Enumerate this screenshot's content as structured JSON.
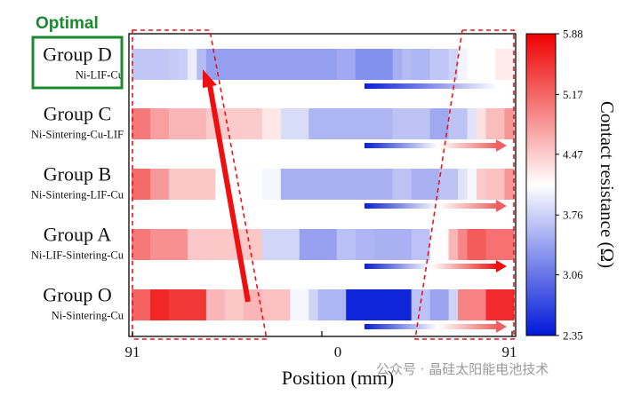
{
  "optimal_label": "Optimal",
  "watermark": "公众号 · 晶硅太阳能电池技术",
  "chart_data": {
    "type": "heatmap",
    "xlabel": "Position (mm)",
    "x_ticks": [
      "91",
      "0",
      "91"
    ],
    "colorbar": {
      "title": "Contact resistance (Ω)",
      "min": 2.35,
      "max": 5.88,
      "ticks": [
        "5.88",
        "5.17",
        "4.47",
        "3.76",
        "3.06",
        "2.35"
      ],
      "low_color": "#0018d8",
      "mid_color": "#ffffff",
      "high_color": "#ee0000"
    },
    "groups": [
      {
        "name": "Group D",
        "desc": "Ni-LIF-Cu",
        "optimal": true,
        "values": [
          3.68,
          3.68,
          3.68,
          3.68,
          3.72,
          3.75,
          3.98,
          3.6,
          3.38,
          3.38,
          3.38,
          3.38,
          3.38,
          3.38,
          3.38,
          3.38,
          3.38,
          3.38,
          3.38,
          3.38,
          3.38,
          3.38,
          3.46,
          3.46,
          3.26,
          3.26,
          3.26,
          3.26,
          3.5,
          3.6,
          3.55,
          3.55,
          3.68,
          3.68,
          3.78,
          4.03,
          4.12,
          4.12,
          4.12,
          4.25,
          4.25
        ]
      },
      {
        "name": "Group C",
        "desc": "Ni-Sintering-Cu-LIF",
        "optimal": false,
        "values": [
          5.05,
          5.05,
          4.78,
          4.78,
          4.62,
          4.62,
          4.62,
          4.62,
          4.48,
          4.48,
          4.48,
          4.48,
          4.48,
          4.48,
          4.28,
          4.28,
          3.85,
          3.85,
          3.85,
          3.55,
          3.55,
          3.55,
          3.55,
          3.55,
          3.55,
          3.55,
          3.55,
          3.55,
          3.66,
          3.66,
          3.66,
          3.66,
          3.45,
          3.45,
          3.66,
          3.66,
          3.9,
          4.32,
          4.58,
          4.58,
          4.85
        ]
      },
      {
        "name": "Group B",
        "desc": "Ni-Sintering-LIF-Cu",
        "optimal": false,
        "values": [
          5.15,
          5.15,
          4.82,
          4.82,
          4.5,
          4.5,
          4.5,
          4.5,
          4.5,
          4.12,
          4.12,
          4.12,
          4.12,
          4.12,
          4.05,
          4.05,
          3.52,
          3.52,
          3.52,
          3.52,
          3.52,
          3.52,
          3.52,
          3.52,
          3.52,
          3.52,
          3.52,
          3.52,
          3.66,
          3.66,
          3.52,
          3.52,
          3.52,
          3.66,
          3.66,
          3.9,
          4.05,
          4.48,
          4.55,
          4.55,
          4.85
        ]
      },
      {
        "name": "Group A",
        "desc": "Ni-LIF-Sintering-Cu",
        "optimal": false,
        "values": [
          5.05,
          5.05,
          4.88,
          4.88,
          4.88,
          4.88,
          4.5,
          4.5,
          4.5,
          4.5,
          4.5,
          4.5,
          4.5,
          4.5,
          3.8,
          3.8,
          3.8,
          3.8,
          3.4,
          3.4,
          3.4,
          3.4,
          3.64,
          3.64,
          3.56,
          3.56,
          3.52,
          3.52,
          3.52,
          3.52,
          3.65,
          3.65,
          4.1,
          4.1,
          4.62,
          4.95,
          5.25,
          5.25,
          5.1,
          5.1,
          5.1
        ]
      },
      {
        "name": "Group O",
        "desc": "Ni-Sintering-Cu",
        "optimal": false,
        "values": [
          5.2,
          5.2,
          5.62,
          5.62,
          5.5,
          5.5,
          5.5,
          5.5,
          4.62,
          4.62,
          4.5,
          4.5,
          4.62,
          4.62,
          4.55,
          4.55,
          4.55,
          4.05,
          4.05,
          3.78,
          3.55,
          3.55,
          3.55,
          2.45,
          2.45,
          2.45,
          2.45,
          2.45,
          2.45,
          2.45,
          3.65,
          3.65,
          3.42,
          3.42,
          3.78,
          4.98,
          4.98,
          4.98,
          5.58,
          5.58,
          5.58
        ]
      }
    ]
  }
}
